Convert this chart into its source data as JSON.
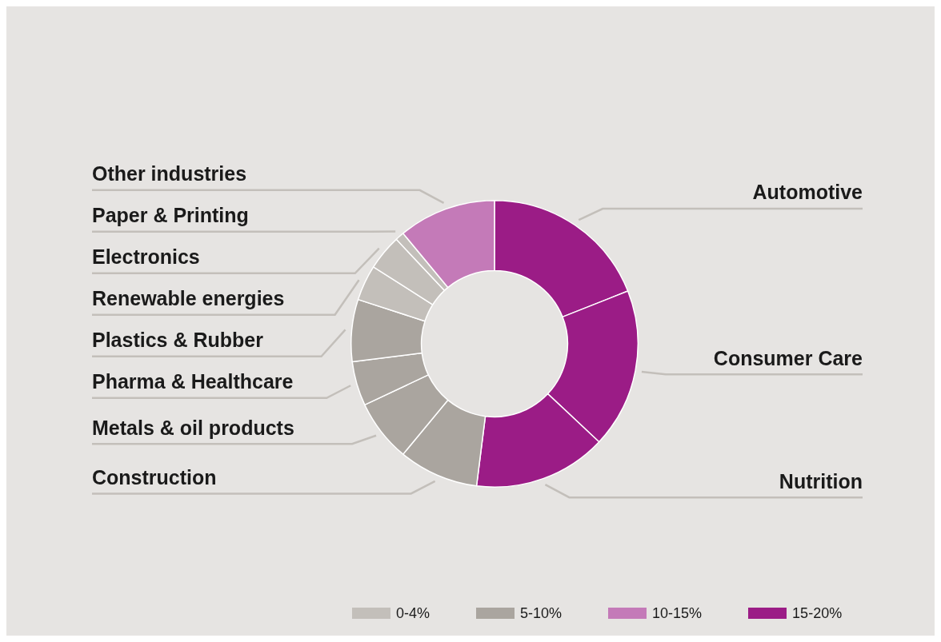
{
  "chart_data": {
    "type": "donut",
    "categories": [
      "Automotive",
      "Consumer Care",
      "Nutrition",
      "Construction",
      "Metals & oil products",
      "Pharma & Healthcare",
      "Plastics & Rubber",
      "Renewable energies",
      "Electronics",
      "Paper & Printing",
      "Other industries"
    ],
    "values": [
      19,
      18,
      15,
      9,
      7,
      5,
      7,
      4,
      4,
      1,
      11
    ],
    "colors": [
      "#9b1c86",
      "#9b1c86",
      "#9b1c86",
      "#aaa59f",
      "#aaa59f",
      "#aaa59f",
      "#aaa59f",
      "#c3bfba",
      "#c3bfba",
      "#c3bfba",
      "#c47ab8"
    ],
    "annotations": [
      "0-4%",
      "5-10%",
      "10-15%",
      "15-20%"
    ]
  }
}
